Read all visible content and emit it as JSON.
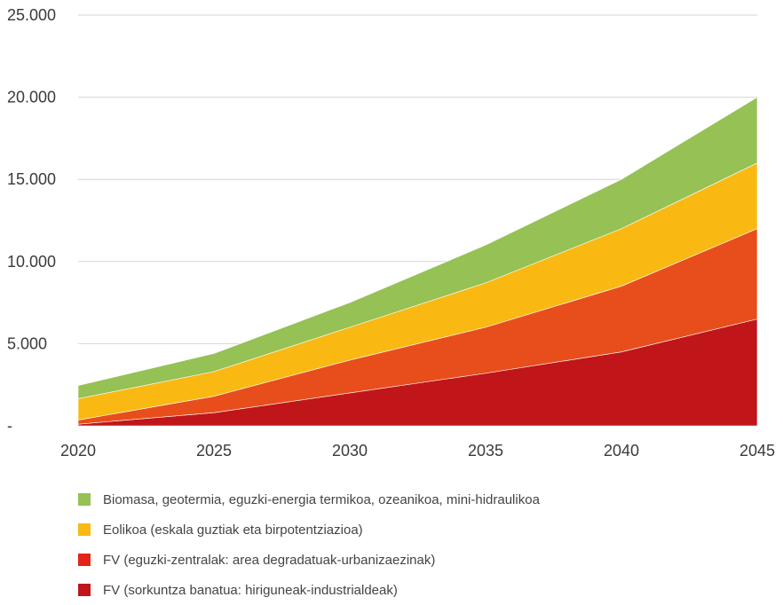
{
  "chart_data": {
    "type": "area",
    "stacked": true,
    "x": [
      2020,
      2025,
      2030,
      2035,
      2040,
      2045
    ],
    "x_tick_labels": [
      "2020",
      "2025",
      "2030",
      "2035",
      "2040",
      "2045"
    ],
    "y_tick_values": [
      0,
      5000,
      10000,
      15000,
      20000,
      25000
    ],
    "y_tick_labels": [
      "-",
      "5.000",
      "10.000",
      "15.000",
      "20.000",
      "25.000"
    ],
    "ylim": [
      0,
      25000
    ],
    "xlim": [
      2020,
      2045
    ],
    "grid": "horizontal",
    "legend_position": "bottom",
    "series": [
      {
        "name": "FV (sorkuntza banatua: hiriguneak-industrialdeak)",
        "color": "#c0161a",
        "values": [
          100,
          800,
          2000,
          3200,
          4500,
          6500
        ]
      },
      {
        "name": "FV (eguzki-zentralak: area degradatuak-urbanizaezinak)",
        "color": "#e84e1b",
        "values": [
          250,
          1000,
          2000,
          2800,
          4000,
          5500
        ]
      },
      {
        "name": "Eolikoa (eskala guztiak eta birpotentziazioa)",
        "color": "#f9b912",
        "values": [
          1300,
          1500,
          2000,
          2700,
          3500,
          4000
        ]
      },
      {
        "name": "Biomasa, geotermia, eguzki-energia termikoa, ozeanikoa, mini-hidraulikoa",
        "color": "#95c155",
        "values": [
          800,
          1100,
          1500,
          2300,
          3000,
          4000
        ]
      }
    ],
    "legend": [
      {
        "label": "Biomasa, geotermia, eguzki-energia termikoa, ozeanikoa, mini-hidraulikoa",
        "color": "#95c155"
      },
      {
        "label": "Eolikoa (eskala guztiak eta birpotentziazioa)",
        "color": "#f9b912"
      },
      {
        "label": "FV (eguzki-zentralak: area degradatuak-urbanizaezinak)",
        "color": "#e1251b"
      },
      {
        "label": "FV (sorkuntza banatua: hiriguneak-industrialdeak)",
        "color": "#c0161a"
      }
    ],
    "grid_color": "#d6d6d6"
  }
}
